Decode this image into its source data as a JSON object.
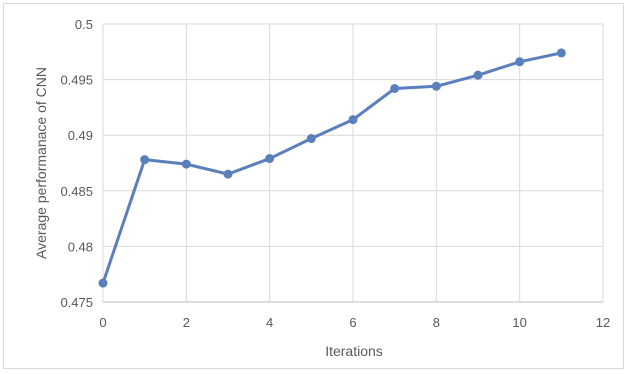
{
  "chart_data": {
    "type": "line",
    "title": "",
    "xlabel": "Iterations",
    "ylabel": "Average performanace of CNN",
    "xlim": [
      0,
      12
    ],
    "ylim": [
      0.475,
      0.5
    ],
    "x_ticks": [
      "0",
      "2",
      "4",
      "6",
      "8",
      "10",
      "12"
    ],
    "y_ticks": [
      "0.475",
      "0.48",
      "0.485",
      "0.49",
      "0.495",
      "0.5"
    ],
    "grid": true,
    "legend": "none",
    "series": [
      {
        "color": "#5a7fbc",
        "x": [
          0,
          1,
          2,
          3,
          4,
          5,
          6,
          7,
          8,
          9,
          10,
          11
        ],
        "y": [
          0.4767,
          0.4878,
          0.4874,
          0.4865,
          0.4879,
          0.4897,
          0.4914,
          0.4942,
          0.4944,
          0.4954,
          0.4966,
          0.4974
        ]
      }
    ]
  }
}
